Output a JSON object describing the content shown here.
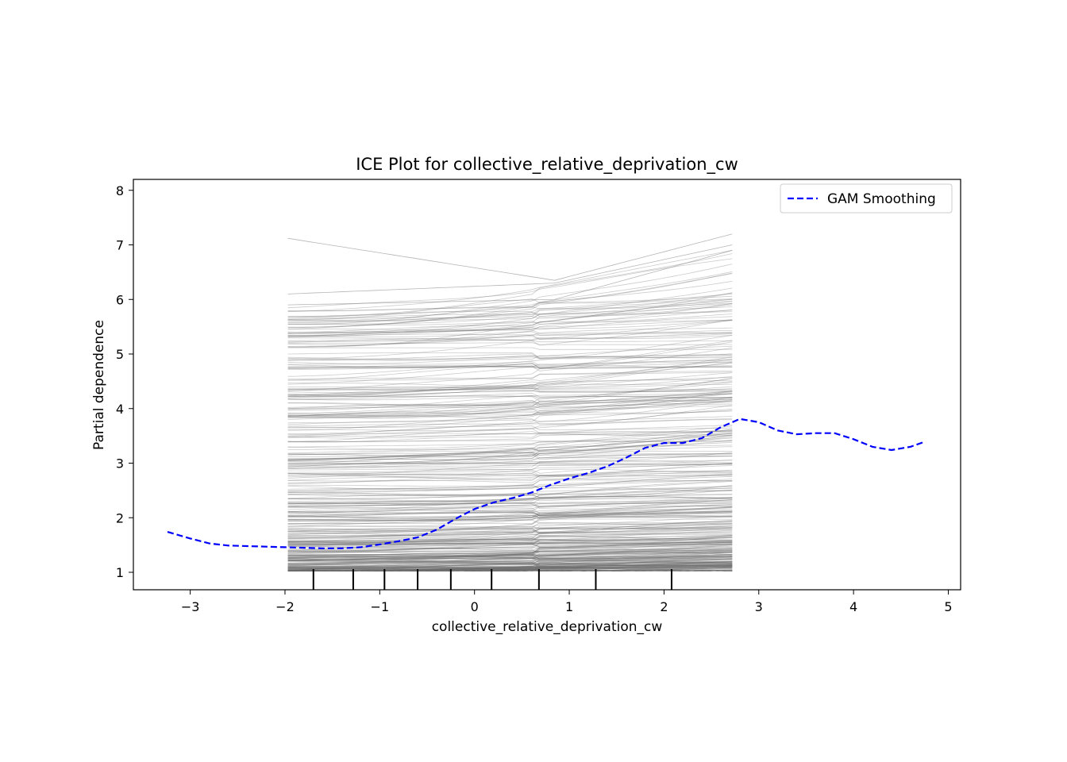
{
  "chart_data": {
    "type": "line",
    "title": "ICE Plot for collective_relative_deprivation_cw",
    "xlabel": "collective_relative_deprivation_cw",
    "ylabel": "Partial dependence",
    "xlim": [
      -3.6,
      5.13
    ],
    "ylim": [
      0.68,
      8.2
    ],
    "x_ticks": [
      -3,
      -2,
      -1,
      0,
      1,
      2,
      3,
      4,
      5
    ],
    "x_tick_labels": [
      "−3",
      "−2",
      "−1",
      "0",
      "1",
      "2",
      "3",
      "4",
      "5"
    ],
    "y_ticks": [
      1,
      2,
      3,
      4,
      5,
      6,
      7,
      8
    ],
    "y_tick_labels": [
      "1",
      "2",
      "3",
      "4",
      "5",
      "6",
      "7",
      "8"
    ],
    "grid": false,
    "legend_position": "top-right",
    "ice_lines": {
      "color": "#6e6e6e",
      "x_range": [
        -1.97,
        2.72
      ],
      "count": 400,
      "y_min": 1.0,
      "y_max": 7.2,
      "description_visible": false
    },
    "rug_ticks_x": [
      -1.7,
      -1.28,
      -0.95,
      -0.6,
      -0.25,
      0.18,
      0.68,
      1.28,
      2.08
    ],
    "series": [
      {
        "name": "GAM Smoothing",
        "color": "#0000ff",
        "style": "dashed",
        "x": [
          -3.24,
          -3.0,
          -2.8,
          -2.6,
          -2.4,
          -2.2,
          -2.0,
          -1.8,
          -1.6,
          -1.4,
          -1.2,
          -1.0,
          -0.8,
          -0.6,
          -0.4,
          -0.2,
          0.0,
          0.2,
          0.4,
          0.6,
          0.8,
          1.0,
          1.2,
          1.4,
          1.6,
          1.8,
          2.0,
          2.2,
          2.4,
          2.6,
          2.8,
          3.0,
          3.2,
          3.4,
          3.6,
          3.8,
          4.0,
          4.2,
          4.4,
          4.6,
          4.73
        ],
        "y": [
          1.74,
          1.62,
          1.53,
          1.49,
          1.48,
          1.47,
          1.46,
          1.45,
          1.44,
          1.44,
          1.46,
          1.51,
          1.57,
          1.64,
          1.78,
          1.98,
          2.16,
          2.28,
          2.36,
          2.46,
          2.6,
          2.72,
          2.82,
          2.94,
          3.1,
          3.28,
          3.37,
          3.37,
          3.46,
          3.66,
          3.81,
          3.75,
          3.6,
          3.53,
          3.55,
          3.55,
          3.44,
          3.3,
          3.24,
          3.3,
          3.38
        ]
      }
    ]
  }
}
